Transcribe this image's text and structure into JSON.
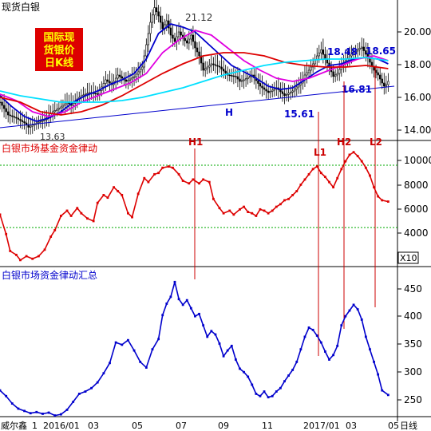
{
  "colors": {
    "background": "#ffffff",
    "price": "#000000",
    "ma_blue": "#0000cc",
    "ma_magenta": "#e000e0",
    "ma_red": "#dd0000",
    "ma_cyan": "#00e0ff",
    "trendline": "#0000cc",
    "fund": "#dd0000",
    "summary": "#0000cc",
    "marker_lines": "#cc0000",
    "grid_green": "#00aa00",
    "badge_bg": "#dd0000",
    "badge_text": "#ffff00"
  },
  "panel1": {
    "title": "现货白银",
    "badge": [
      "国际现",
      "货银价",
      "日K线"
    ],
    "y_ticks": [
      "20.00",
      "18.00",
      "16.00",
      "14.00"
    ],
    "annotations": {
      "high": "21.12",
      "low": "13.63",
      "l1_low": "15.61",
      "h2_high": "18.48",
      "l2_low": "16.81",
      "l2_high": "18.65",
      "trend": "H"
    },
    "markers": [
      "H1",
      "L1",
      "H2",
      "L2"
    ]
  },
  "panel2": {
    "title": "白银市场基金资金律动",
    "y_ticks": [
      "10000",
      "8000",
      "6000",
      "4000"
    ],
    "scale_label": "X10"
  },
  "panel3": {
    "title": "白银市场资金律动汇总",
    "y_ticks": [
      "450",
      "400",
      "350",
      "300",
      "250"
    ]
  },
  "xaxis": {
    "brand": "威尔鑫",
    "labels": [
      "1",
      "2016/01",
      "03",
      "05",
      "07",
      "09",
      "11",
      "2017/01",
      "03",
      "05"
    ],
    "unit": "日线"
  },
  "chart_data": [
    {
      "type": "candlestick",
      "title": "现货白银",
      "ylim": [
        12.8,
        21.6
      ],
      "series": [
        {
          "name": "price",
          "x": [
            0,
            4,
            8,
            12,
            14,
            18,
            22,
            26,
            30,
            33,
            35,
            38,
            40,
            44,
            48,
            52,
            55,
            58,
            62,
            66,
            70,
            72,
            74,
            76,
            78,
            80,
            82,
            84,
            86,
            88,
            90,
            92,
            94,
            96,
            98,
            100,
            104,
            108,
            112,
            116,
            118,
            120,
            124,
            128,
            132,
            136,
            140,
            144,
            148,
            150,
            152,
            154,
            156,
            158,
            160,
            162,
            164,
            166,
            168,
            170,
            172,
            174,
            176,
            178,
            180,
            182,
            184,
            186,
            188,
            189,
            190,
            191
          ],
          "values": [
            15.2,
            14.4,
            14.2,
            13.9,
            13.63,
            13.9,
            14.1,
            14.6,
            14.9,
            15.2,
            15.0,
            15.4,
            15.6,
            15.8,
            15.7,
            16.6,
            16.3,
            16.9,
            16.5,
            16.8,
            17.4,
            18.8,
            20.2,
            21.12,
            20.6,
            19.8,
            20.3,
            19.4,
            19.0,
            19.6,
            19.2,
            18.9,
            19.4,
            18.6,
            18.1,
            17.2,
            17.6,
            17.4,
            16.9,
            16.8,
            16.5,
            16.6,
            16.9,
            16.2,
            15.8,
            16.1,
            15.61,
            15.9,
            16.4,
            16.9,
            17.2,
            17.6,
            18.1,
            18.48,
            17.9,
            17.4,
            16.81,
            17.0,
            17.5,
            17.8,
            18.1,
            18.3,
            18.5,
            18.65,
            18.2,
            17.7,
            17.2,
            16.9,
            16.4,
            16.2,
            16.3,
            16.5
          ]
        },
        {
          "name": "ma_blue",
          "x": [
            0,
            6,
            12,
            18,
            24,
            30,
            36,
            42,
            48,
            54,
            60,
            66,
            72,
            78,
            84,
            90,
            96,
            102,
            108,
            114,
            120,
            126,
            132,
            138,
            144,
            150,
            156,
            162,
            168,
            174,
            180,
            186,
            191
          ],
          "values": [
            15.6,
            14.9,
            14.3,
            14.0,
            14.2,
            14.6,
            15.2,
            15.6,
            15.9,
            16.3,
            16.6,
            17.0,
            17.9,
            19.5,
            20.1,
            19.9,
            19.6,
            18.9,
            18.2,
            17.5,
            17.1,
            16.7,
            16.2,
            16.0,
            16.1,
            16.6,
            17.1,
            17.5,
            17.6,
            17.9,
            18.0,
            17.9,
            17.6
          ]
        },
        {
          "name": "ma_magenta",
          "x": [
            0,
            8,
            16,
            24,
            32,
            40,
            48,
            56,
            64,
            72,
            80,
            88,
            96,
            104,
            112,
            120,
            128,
            136,
            144,
            152,
            160,
            168,
            176,
            184,
            191
          ],
          "values": [
            15.7,
            15.3,
            14.6,
            14.3,
            14.6,
            15.2,
            15.6,
            16.0,
            16.4,
            17.0,
            18.3,
            19.1,
            19.7,
            19.4,
            18.6,
            17.8,
            17.2,
            16.7,
            16.5,
            16.7,
            17.1,
            17.5,
            17.9,
            18.1,
            17.8
          ]
        },
        {
          "name": "ma_red",
          "x": [
            0,
            10,
            20,
            30,
            40,
            50,
            60,
            70,
            80,
            90,
            100,
            110,
            120,
            130,
            140,
            150,
            160,
            170,
            180,
            191
          ],
          "values": [
            15.5,
            15.2,
            14.6,
            14.4,
            14.6,
            15.0,
            15.6,
            16.3,
            17.0,
            17.6,
            18.1,
            18.3,
            18.3,
            18.1,
            17.7,
            17.5,
            17.4,
            17.4,
            17.5,
            17.3
          ]
        },
        {
          "name": "ma_cyan",
          "x": [
            0,
            10,
            20,
            30,
            40,
            50,
            60,
            70,
            80,
            90,
            100,
            110,
            120,
            130,
            140,
            150,
            160,
            170,
            180,
            191
          ],
          "values": [
            15.9,
            15.6,
            15.4,
            15.2,
            15.2,
            15.2,
            15.3,
            15.5,
            15.8,
            16.1,
            16.5,
            16.9,
            17.2,
            17.5,
            17.7,
            17.8,
            17.9,
            17.9,
            18.0,
            17.8
          ]
        },
        {
          "name": "trendline",
          "x": [
            0,
            194
          ],
          "values": [
            13.6,
            16.2
          ]
        }
      ]
    },
    {
      "type": "line",
      "title": "白银市场基金资金律动",
      "ylim": [
        2000,
        11700
      ],
      "reference_lines": [
        9800,
        5000
      ],
      "series": [
        {
          "name": "fund",
          "x": [
            0,
            3,
            5,
            8,
            10,
            13,
            16,
            19,
            22,
            25,
            27,
            30,
            33,
            35,
            38,
            40,
            43,
            46,
            48,
            51,
            53,
            56,
            58,
            60,
            63,
            65,
            68,
            71,
            73,
            76,
            78,
            80,
            83,
            85,
            88,
            90,
            93,
            95,
            98,
            100,
            103,
            105,
            108,
            110,
            113,
            115,
            118,
            120,
            122,
            124,
            126,
            128,
            130,
            132,
            134,
            136,
            138,
            140,
            142,
            144,
            146,
            148,
            150,
            152,
            154,
            156,
            158,
            160,
            162,
            164,
            166,
            168,
            170,
            172,
            174,
            176,
            178,
            180,
            182,
            184,
            186,
            188,
            191
          ],
          "values": [
            6000,
            4500,
            3200,
            2900,
            2500,
            2800,
            2600,
            2800,
            3300,
            4300,
            4800,
            5900,
            6300,
            5900,
            6500,
            6100,
            5700,
            5500,
            6900,
            7500,
            7300,
            8100,
            7800,
            7500,
            6100,
            5800,
            7600,
            8800,
            8500,
            9100,
            9200,
            9600,
            9700,
            9600,
            9100,
            8600,
            8400,
            8700,
            8400,
            8700,
            8500,
            7200,
            6500,
            6100,
            6300,
            6000,
            6400,
            6600,
            6200,
            6100,
            5900,
            6400,
            6300,
            6100,
            6300,
            6600,
            6800,
            7100,
            7200,
            7500,
            7800,
            8300,
            8700,
            9100,
            9500,
            9700,
            9200,
            8900,
            8500,
            8100,
            8800,
            9500,
            10100,
            10600,
            10800,
            10500,
            10100,
            9600,
            9000,
            8100,
            7400,
            7100,
            7000
          ]
        }
      ]
    },
    {
      "type": "line",
      "title": "白银市场资金律动汇总",
      "ylim": [
        222,
        485
      ],
      "series": [
        {
          "name": "summary",
          "x": [
            0,
            3,
            6,
            9,
            12,
            15,
            18,
            21,
            24,
            27,
            30,
            33,
            36,
            39,
            42,
            45,
            48,
            51,
            54,
            57,
            60,
            63,
            66,
            69,
            72,
            75,
            78,
            80,
            82,
            84,
            86,
            88,
            90,
            92,
            94,
            96,
            98,
            100,
            102,
            104,
            106,
            108,
            110,
            112,
            114,
            116,
            118,
            120,
            122,
            124,
            126,
            128,
            130,
            132,
            134,
            136,
            138,
            140,
            142,
            144,
            146,
            148,
            150,
            152,
            154,
            156,
            158,
            160,
            162,
            164,
            166,
            168,
            170,
            172,
            174,
            176,
            178,
            180,
            182,
            184,
            186,
            188,
            191
          ],
          "values": [
            268,
            258,
            245,
            236,
            232,
            228,
            230,
            227,
            229,
            224,
            226,
            234,
            248,
            262,
            266,
            272,
            282,
            298,
            316,
            352,
            348,
            356,
            338,
            318,
            308,
            340,
            358,
            400,
            420,
            432,
            458,
            428,
            418,
            426,
            412,
            398,
            402,
            382,
            362,
            372,
            366,
            350,
            328,
            338,
            346,
            322,
            306,
            300,
            292,
            278,
            262,
            258,
            266,
            256,
            258,
            266,
            272,
            284,
            294,
            304,
            318,
            340,
            362,
            378,
            374,
            364,
            352,
            336,
            322,
            330,
            346,
            382,
            398,
            408,
            418,
            410,
            392,
            362,
            340,
            318,
            296,
            268,
            260
          ]
        }
      ]
    }
  ]
}
